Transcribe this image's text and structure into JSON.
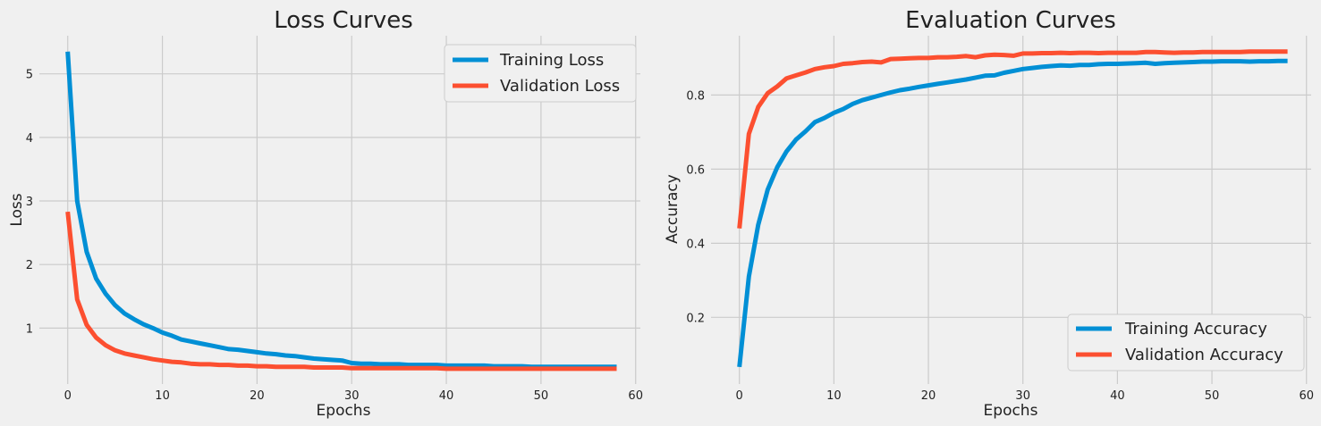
{
  "chart_data": [
    {
      "type": "line",
      "title": "Loss Curves",
      "xlabel": "Epochs",
      "ylabel": "Loss",
      "xlim": [
        -3,
        60.5
      ],
      "ylim": [
        0.12,
        5.6
      ],
      "xticks": [
        0,
        10,
        20,
        30,
        40,
        50,
        60
      ],
      "yticks": [
        1,
        2,
        3,
        4,
        5
      ],
      "grid": true,
      "legend_position": "upper right",
      "series": [
        {
          "name": "Training Loss",
          "color": "#008fd5",
          "values": [
            5.35,
            3.0,
            2.2,
            1.78,
            1.54,
            1.36,
            1.23,
            1.14,
            1.06,
            1.0,
            0.93,
            0.88,
            0.82,
            0.79,
            0.76,
            0.73,
            0.7,
            0.67,
            0.66,
            0.64,
            0.62,
            0.6,
            0.59,
            0.57,
            0.56,
            0.54,
            0.52,
            0.51,
            0.5,
            0.49,
            0.45,
            0.44,
            0.44,
            0.43,
            0.43,
            0.43,
            0.42,
            0.42,
            0.42,
            0.42,
            0.41,
            0.41,
            0.41,
            0.41,
            0.41,
            0.4,
            0.4,
            0.4,
            0.4,
            0.39,
            0.39,
            0.39,
            0.39,
            0.39,
            0.39,
            0.39,
            0.39,
            0.39,
            0.39
          ]
        },
        {
          "name": "Validation Loss",
          "color": "#fc4f30",
          "values": [
            2.83,
            1.45,
            1.05,
            0.85,
            0.73,
            0.65,
            0.6,
            0.57,
            0.54,
            0.51,
            0.49,
            0.47,
            0.46,
            0.44,
            0.43,
            0.43,
            0.42,
            0.42,
            0.41,
            0.41,
            0.4,
            0.4,
            0.39,
            0.39,
            0.39,
            0.39,
            0.38,
            0.38,
            0.38,
            0.38,
            0.37,
            0.37,
            0.37,
            0.37,
            0.37,
            0.37,
            0.37,
            0.37,
            0.37,
            0.37,
            0.36,
            0.36,
            0.36,
            0.36,
            0.36,
            0.36,
            0.36,
            0.36,
            0.36,
            0.36,
            0.36,
            0.36,
            0.36,
            0.36,
            0.36,
            0.36,
            0.36,
            0.36,
            0.36
          ]
        }
      ]
    },
    {
      "type": "line",
      "title": "Evaluation Curves",
      "xlabel": "Epochs",
      "ylabel": "Accuracy",
      "xlim": [
        -3,
        60.5
      ],
      "ylim": [
        0.02,
        0.96
      ],
      "xticks": [
        0,
        10,
        20,
        30,
        40,
        50,
        60
      ],
      "yticks": [
        0.2,
        0.4,
        0.6,
        0.8
      ],
      "grid": true,
      "legend_position": "lower right",
      "series": [
        {
          "name": "Training Accuracy",
          "color": "#008fd5",
          "values": [
            0.066,
            0.31,
            0.45,
            0.545,
            0.605,
            0.648,
            0.68,
            0.702,
            0.727,
            0.738,
            0.752,
            0.762,
            0.776,
            0.786,
            0.793,
            0.8,
            0.807,
            0.813,
            0.817,
            0.822,
            0.826,
            0.83,
            0.834,
            0.838,
            0.842,
            0.847,
            0.852,
            0.853,
            0.86,
            0.865,
            0.87,
            0.873,
            0.876,
            0.878,
            0.88,
            0.879,
            0.881,
            0.881,
            0.883,
            0.884,
            0.884,
            0.885,
            0.886,
            0.887,
            0.884,
            0.886,
            0.887,
            0.888,
            0.889,
            0.89,
            0.89,
            0.891,
            0.891,
            0.891,
            0.89,
            0.891,
            0.891,
            0.892,
            0.892
          ]
        },
        {
          "name": "Validation Accuracy",
          "color": "#fc4f30",
          "values": [
            0.44,
            0.695,
            0.768,
            0.805,
            0.823,
            0.845,
            0.853,
            0.861,
            0.87,
            0.875,
            0.878,
            0.884,
            0.886,
            0.889,
            0.89,
            0.888,
            0.897,
            0.898,
            0.899,
            0.9,
            0.9,
            0.902,
            0.902,
            0.903,
            0.905,
            0.902,
            0.907,
            0.909,
            0.908,
            0.906,
            0.912,
            0.912,
            0.913,
            0.913,
            0.914,
            0.913,
            0.914,
            0.914,
            0.913,
            0.914,
            0.914,
            0.914,
            0.914,
            0.916,
            0.916,
            0.915,
            0.914,
            0.915,
            0.915,
            0.916,
            0.916,
            0.916,
            0.916,
            0.916,
            0.917,
            0.917,
            0.917,
            0.917,
            0.917
          ]
        }
      ]
    }
  ]
}
